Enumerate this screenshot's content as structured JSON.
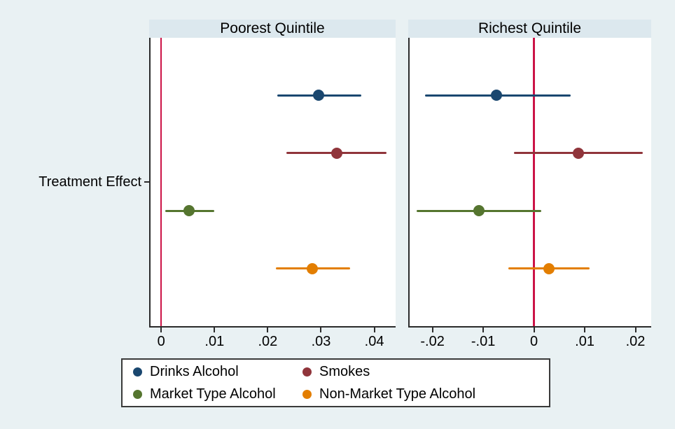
{
  "figure": {
    "background": "#e9f1f3",
    "plot_background": "#ffffff",
    "panel_header_background": "#dce8ee",
    "axis_color": "#2b2b2b",
    "text_color": "#000000",
    "zero_line_color": "#cc1347",
    "legend_border_color": "#3a3a3a"
  },
  "chart_data": {
    "type": "scatter",
    "subtype": "coefficient-dot-plot-with-95ci",
    "title": "",
    "ylabel": "Treatment Effect",
    "xlabel": "",
    "grid": false,
    "legend_position": "bottom",
    "legend": [
      {
        "label": "Drinks Alcohol",
        "color": "#1a476f"
      },
      {
        "label": "Smokes",
        "color": "#90353b"
      },
      {
        "label": "Market Type Alcohol",
        "color": "#55752f"
      },
      {
        "label": "Non-Market Type Alcohol",
        "color": "#e37e00"
      }
    ],
    "panels": [
      {
        "title": "Poorest Quintile",
        "xlim": [
          -0.002,
          0.044
        ],
        "xticks": [
          0,
          0.01,
          0.02,
          0.03,
          0.04
        ],
        "xtick_labels": [
          "0",
          ".01",
          ".02",
          ".03",
          ".04"
        ],
        "zero_line_x": 0,
        "series": [
          {
            "name": "Drinks Alcohol",
            "estimate": 0.0296,
            "ci_low": 0.0218,
            "ci_high": 0.0375
          },
          {
            "name": "Smokes",
            "estimate": 0.0329,
            "ci_low": 0.0235,
            "ci_high": 0.0423
          },
          {
            "name": "Market Type Alcohol",
            "estimate": 0.0052,
            "ci_low": 0.0008,
            "ci_high": 0.01
          },
          {
            "name": "Non-Market Type Alcohol",
            "estimate": 0.0283,
            "ci_low": 0.0215,
            "ci_high": 0.0355
          }
        ]
      },
      {
        "title": "Richest Quintile",
        "xlim": [
          -0.0245,
          0.0231
        ],
        "xticks": [
          -0.02,
          -0.01,
          0,
          0.01,
          0.02
        ],
        "xtick_labels": [
          "-.02",
          "-.01",
          "0",
          ".01",
          ".02"
        ],
        "zero_line_x": 0,
        "series": [
          {
            "name": "Drinks Alcohol",
            "estimate": -0.0074,
            "ci_low": -0.0215,
            "ci_high": 0.0073
          },
          {
            "name": "Smokes",
            "estimate": 0.0087,
            "ci_low": -0.0039,
            "ci_high": 0.0214
          },
          {
            "name": "Market Type Alcohol",
            "estimate": -0.0108,
            "ci_low": -0.0231,
            "ci_high": 0.0015
          },
          {
            "name": "Non-Market Type Alcohol",
            "estimate": 0.0029,
            "ci_low": -0.005,
            "ci_high": 0.011
          }
        ]
      }
    ]
  }
}
